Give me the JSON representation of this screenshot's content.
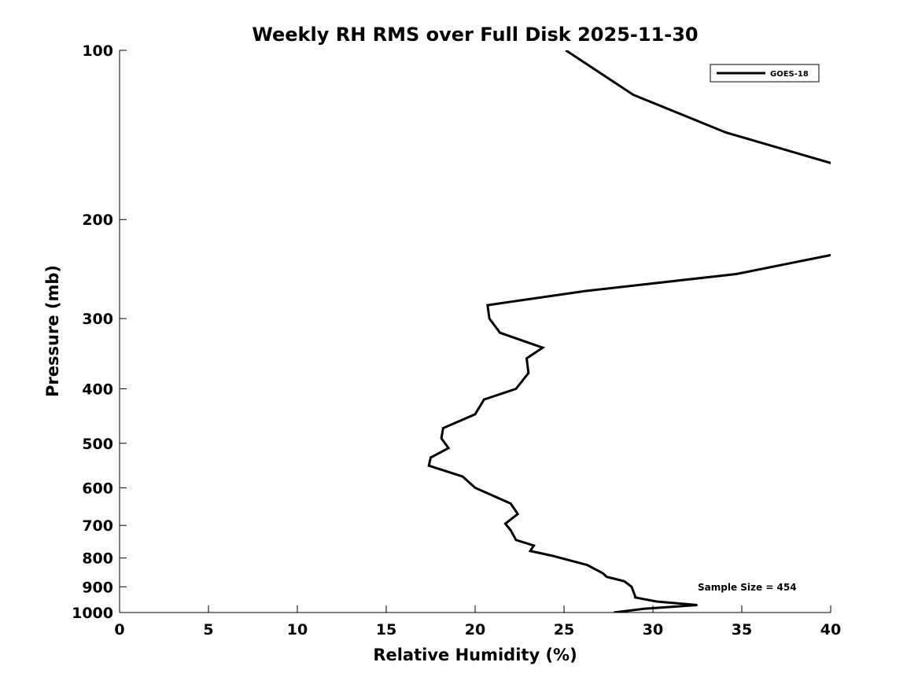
{
  "chart_data": {
    "type": "line",
    "title": "Weekly RH RMS over Full Disk 2025-11-30",
    "xlabel": "Relative Humidity (%)",
    "ylabel": "Pressure (mb)",
    "xlim": [
      0,
      40
    ],
    "ylim": [
      100,
      1000
    ],
    "yscale": "log",
    "y_reversed": true,
    "grid": false,
    "legend_position": "top-right",
    "x_ticks": [
      "0",
      "5",
      "10",
      "15",
      "20",
      "25",
      "30",
      "35",
      "40"
    ],
    "y_ticks": [
      "100",
      "200",
      "300",
      "400",
      "500",
      "600",
      "700",
      "800",
      "900",
      "1000"
    ],
    "annotation": "Sample Size = 454",
    "series": [
      {
        "name": "GOES-18",
        "color": "#000000",
        "x": [
          25.1,
          28.9,
          34.1,
          40.4,
          40.4,
          34.7,
          26.2,
          20.7,
          20.8,
          21.4,
          23.8,
          22.9,
          23.0,
          22.3,
          20.5,
          20.0,
          18.2,
          18.1,
          18.5,
          17.5,
          17.4,
          19.3,
          20.0,
          22.0,
          22.4,
          21.7,
          22.0,
          22.3,
          23.3,
          23.1,
          24.3,
          26.3,
          27.2,
          27.4,
          28.4,
          28.8,
          29.0,
          29.0,
          30.2,
          32.5,
          29.5,
          27.8
        ],
        "y": [
          100,
          120,
          140,
          160,
          230,
          250,
          268,
          284,
          300,
          318,
          338,
          353,
          375,
          400,
          418,
          444,
          470,
          490,
          510,
          530,
          548,
          573,
          600,
          640,
          668,
          695,
          714,
          743,
          760,
          777,
          792,
          823,
          852,
          864,
          880,
          900,
          935,
          940,
          956,
          970,
          985,
          1000
        ]
      }
    ]
  }
}
